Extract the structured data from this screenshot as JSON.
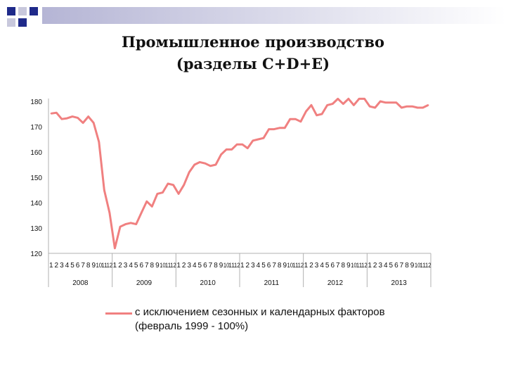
{
  "slide": {
    "title_line1": "Промышленное производство",
    "title_line2": "(разделы C+D+E)",
    "accent_color": "#1f2a8a"
  },
  "chart_data": {
    "type": "line",
    "title": "Промышленное производство (разделы C+D+E)",
    "yaxis": {
      "min": 120,
      "max": 180,
      "ticks": [
        120,
        130,
        140,
        150,
        160,
        170,
        180
      ]
    },
    "xaxis": {
      "month_labels": [
        "1",
        "2",
        "3",
        "4",
        "5",
        "6",
        "7",
        "8",
        "9",
        "10",
        "11",
        "12"
      ],
      "years": [
        "2008",
        "2009",
        "2010",
        "2011",
        "2012",
        "2013"
      ]
    },
    "grid": false,
    "legend": {
      "position": "bottom",
      "line1": "с исключением сезонных и календарных факторов",
      "line2": "(февраль 1999 - 100%)"
    },
    "series": [
      {
        "name": "с исключением сезонных и календарных факторов (февраль 1999 - 100%)",
        "color": "#f08080",
        "values": [
          175.2,
          175.5,
          173.0,
          173.3,
          174.0,
          173.5,
          171.5,
          174.0,
          171.5,
          164.0,
          145.0,
          136.0,
          122.0,
          130.5,
          131.5,
          132.0,
          131.5,
          136.0,
          140.5,
          138.5,
          143.5,
          144.0,
          147.5,
          147.0,
          143.5,
          147.0,
          152.0,
          155.0,
          156.0,
          155.5,
          154.5,
          155.0,
          159.0,
          161.0,
          161.0,
          163.0,
          163.0,
          161.5,
          164.5,
          165.0,
          165.5,
          169.0,
          169.0,
          169.5,
          169.5,
          173.0,
          173.0,
          172.0,
          176.0,
          178.5,
          174.5,
          175.0,
          178.5,
          179.0,
          181.0,
          179.0,
          181.0,
          178.5,
          181.0,
          181.0,
          178.0,
          177.5,
          180.0,
          179.5,
          179.5,
          179.5,
          177.5,
          178.0,
          178.0,
          177.5,
          177.5,
          178.5
        ]
      }
    ]
  }
}
